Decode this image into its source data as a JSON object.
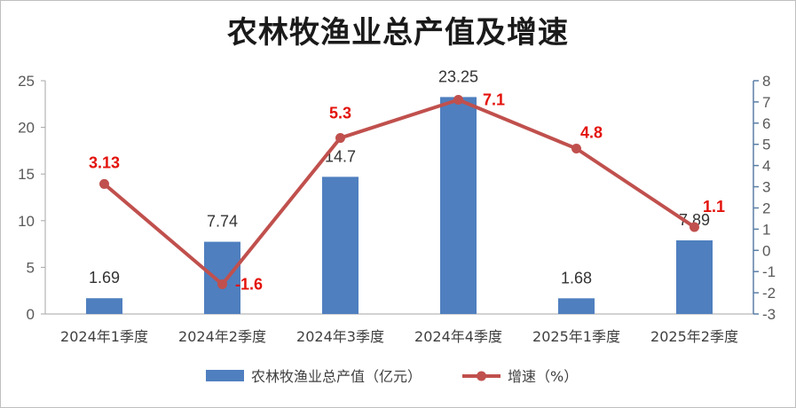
{
  "chart_data": {
    "type": "bar+line",
    "title": "农林牧渔业总产值及增速",
    "categories": [
      "2024年1季度",
      "2024年2季度",
      "2024年3季度",
      "2024年4季度",
      "2025年1季度",
      "2025年2季度"
    ],
    "series": [
      {
        "name": "农林牧渔业总产值（亿元）",
        "type": "bar",
        "axis": "left",
        "color": "#4f7fbf",
        "values": [
          1.69,
          7.74,
          14.7,
          23.25,
          1.68,
          7.89
        ],
        "labels": [
          "1.69",
          "7.74",
          "14.7",
          "23.25",
          "1.68",
          "7.89"
        ]
      },
      {
        "name": "增速（%）",
        "type": "line",
        "axis": "right",
        "color": "#c0504d",
        "label_color": "#e3120b",
        "values": [
          3.13,
          -1.6,
          5.3,
          7.1,
          4.8,
          1.1
        ],
        "labels": [
          "3.13",
          "-1.6",
          "5.3",
          "7.1",
          "4.8",
          "1.1"
        ]
      }
    ],
    "y_left": {
      "min": 0,
      "max": 25,
      "ticks": [
        "0",
        "5",
        "10",
        "15",
        "20",
        "25"
      ]
    },
    "y_right": {
      "min": -3,
      "max": 8,
      "ticks": [
        "-3",
        "-2",
        "-1",
        "0",
        "1",
        "2",
        "3",
        "4",
        "5",
        "6",
        "7",
        "8"
      ]
    },
    "grid": false,
    "legend": "bottom"
  }
}
